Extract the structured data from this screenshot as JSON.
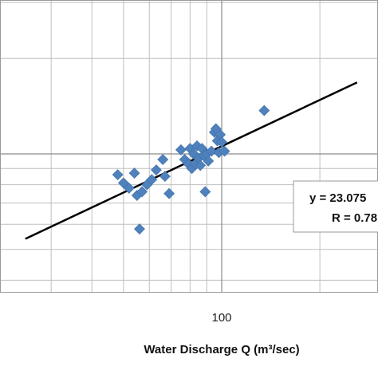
{
  "chart_data": {
    "type": "scatter",
    "x_scale": "log",
    "y_scale": "log",
    "xlabel": "Water Discharge Q (m³/sec)",
    "ylabel": "",
    "x_tick_labels": [
      {
        "value": 100,
        "label": "100"
      }
    ],
    "grid": true,
    "series": [
      {
        "points": [
          {
            "x": 48,
            "y": 8.6
          },
          {
            "x": 50,
            "y": 8.1
          },
          {
            "x": 52,
            "y": 7.8
          },
          {
            "x": 54,
            "y": 8.7
          },
          {
            "x": 55,
            "y": 7.4
          },
          {
            "x": 56,
            "y": 5.8
          },
          {
            "x": 57,
            "y": 7.6
          },
          {
            "x": 59,
            "y": 8.0
          },
          {
            "x": 61,
            "y": 8.3
          },
          {
            "x": 63,
            "y": 8.9
          },
          {
            "x": 66,
            "y": 9.6
          },
          {
            "x": 67,
            "y": 8.5
          },
          {
            "x": 69,
            "y": 7.5
          },
          {
            "x": 75,
            "y": 10.3
          },
          {
            "x": 77,
            "y": 9.6
          },
          {
            "x": 79,
            "y": 9.3
          },
          {
            "x": 80,
            "y": 10.4
          },
          {
            "x": 81,
            "y": 9.0
          },
          {
            "x": 82,
            "y": 10.0
          },
          {
            "x": 83,
            "y": 9.3
          },
          {
            "x": 84,
            "y": 10.6
          },
          {
            "x": 85,
            "y": 9.7
          },
          {
            "x": 86,
            "y": 9.2
          },
          {
            "x": 87,
            "y": 10.4
          },
          {
            "x": 88,
            "y": 9.9
          },
          {
            "x": 89,
            "y": 7.6
          },
          {
            "x": 90,
            "y": 10.0
          },
          {
            "x": 91,
            "y": 9.5
          },
          {
            "x": 93,
            "y": 10.2
          },
          {
            "x": 95,
            "y": 11.7
          },
          {
            "x": 96,
            "y": 12.0
          },
          {
            "x": 97,
            "y": 11.0
          },
          {
            "x": 98,
            "y": 10.1
          },
          {
            "x": 99,
            "y": 11.5
          },
          {
            "x": 100,
            "y": 10.9
          },
          {
            "x": 102,
            "y": 10.2
          },
          {
            "x": 135,
            "y": 13.7
          }
        ]
      }
    ],
    "trendline": {
      "x": [
        25,
        260
      ],
      "y": [
        5.4,
        16.8
      ]
    },
    "annotation": {
      "line1": "y = 23.075",
      "line2": "R = 0.78"
    },
    "colors": {
      "marker": "#4f81bd",
      "trendline": "#000000",
      "grid": "#bfbfbf"
    }
  }
}
